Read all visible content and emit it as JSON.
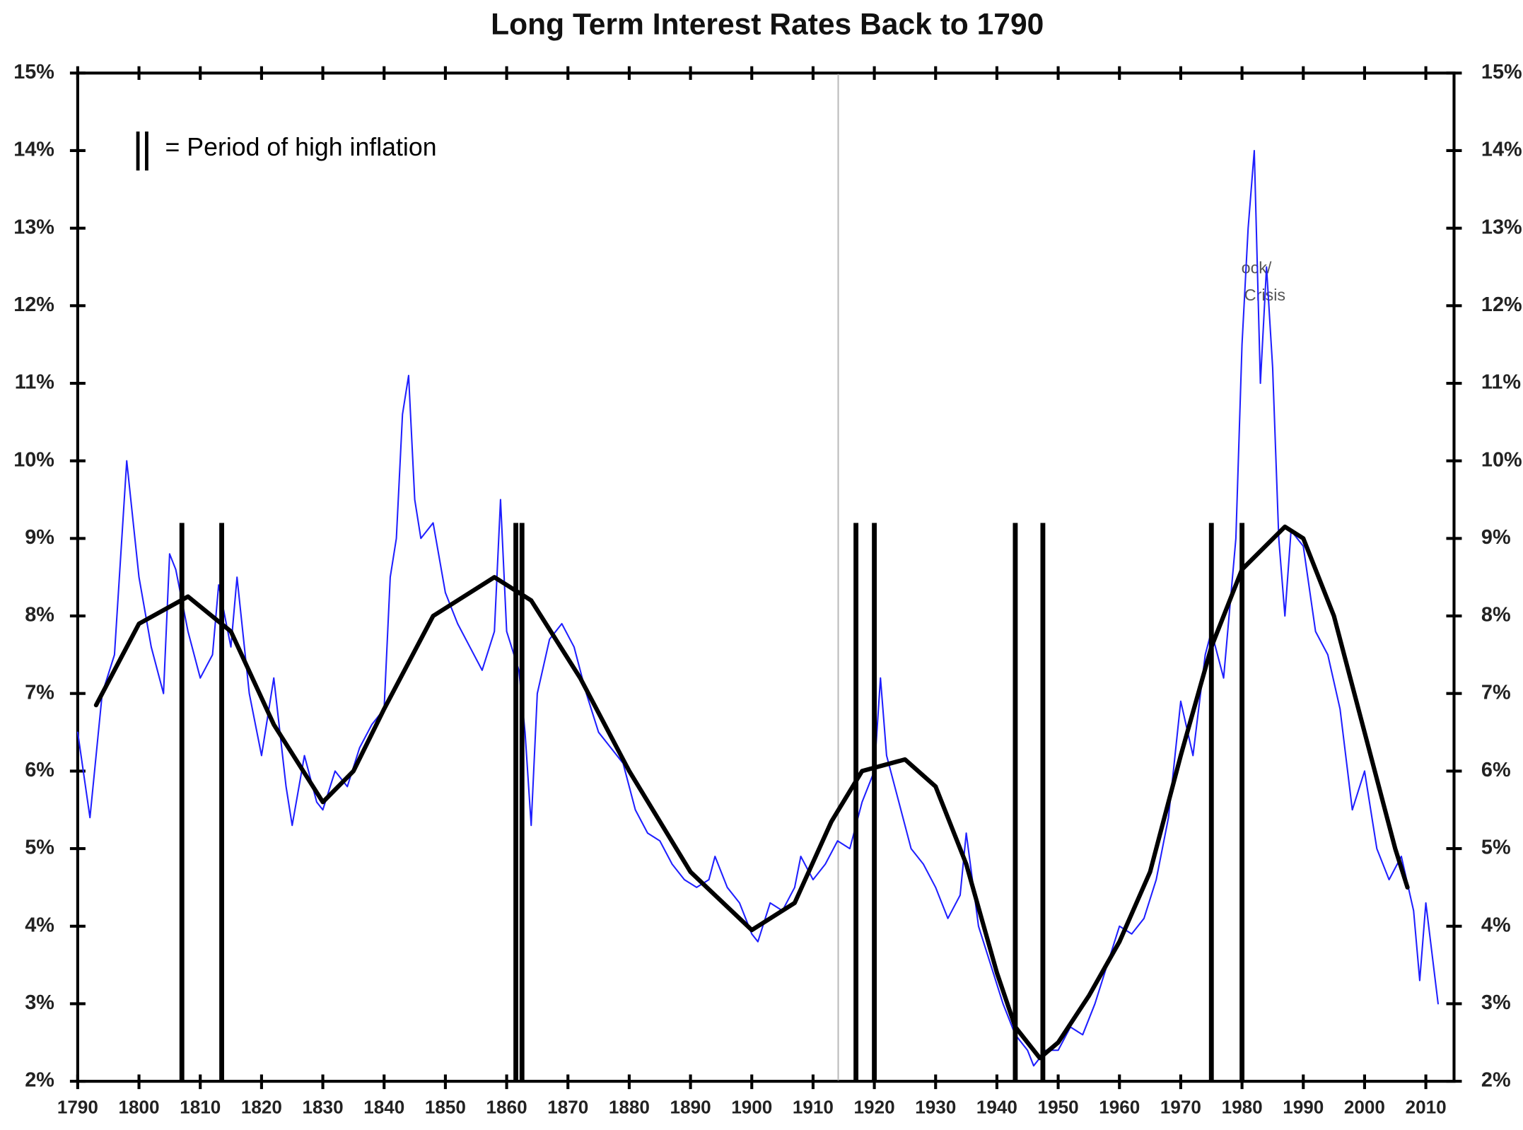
{
  "chart_data": {
    "type": "line",
    "title": "Long Term Interest Rates Back to 1790",
    "legend_text": "= Period of high inflation",
    "annotations": [
      "ock/",
      "Crisis"
    ],
    "xlim": [
      1790,
      2014.6
    ],
    "xticks": [
      1790,
      1800,
      1810,
      1820,
      1830,
      1840,
      1850,
      1860,
      1870,
      1880,
      1890,
      1900,
      1910,
      1920,
      1930,
      1940,
      1950,
      1960,
      1970,
      1980,
      1990,
      2000,
      2010
    ],
    "ylim": [
      2,
      15
    ],
    "yticks": [
      {
        "value": 2,
        "label": "2%"
      },
      {
        "value": 3,
        "label": "3%"
      },
      {
        "value": 4,
        "label": "4%"
      },
      {
        "value": 5,
        "label": "5%"
      },
      {
        "value": 6,
        "label": "6%"
      },
      {
        "value": 7,
        "label": "7%"
      },
      {
        "value": 8,
        "label": "8%"
      },
      {
        "value": 9,
        "label": "9%"
      },
      {
        "value": 10,
        "label": "10%"
      },
      {
        "value": 11,
        "label": "11%"
      },
      {
        "value": 12,
        "label": "12%"
      },
      {
        "value": 13,
        "label": "13%"
      },
      {
        "value": 14,
        "label": "14%"
      },
      {
        "value": 15,
        "label": "15%"
      }
    ],
    "series": [
      {
        "color": "#1f1fff",
        "width": 1.5,
        "x": [
          1790,
          1792,
          1794,
          1796,
          1798,
          1800,
          1802,
          1804,
          1805,
          1806,
          1808,
          1810,
          1812,
          1813,
          1815,
          1816,
          1818,
          1820,
          1822,
          1824,
          1825,
          1827,
          1829,
          1830,
          1832,
          1834,
          1836,
          1838,
          1840,
          1841,
          1842,
          1843,
          1844,
          1845,
          1846,
          1848,
          1850,
          1852,
          1854,
          1856,
          1858,
          1859,
          1860,
          1862,
          1863,
          1864,
          1865,
          1867,
          1869,
          1871,
          1873,
          1875,
          1877,
          1879,
          1881,
          1883,
          1885,
          1887,
          1889,
          1891,
          1893,
          1894,
          1896,
          1898,
          1900,
          1901,
          1903,
          1905,
          1907,
          1908,
          1910,
          1912,
          1914,
          1916,
          1918,
          1920,
          1921,
          1922,
          1924,
          1926,
          1928,
          1930,
          1932,
          1934,
          1935,
          1937,
          1939,
          1941,
          1943,
          1945,
          1946,
          1948,
          1950,
          1952,
          1954,
          1956,
          1958,
          1960,
          1962,
          1964,
          1966,
          1968,
          1970,
          1972,
          1974,
          1975,
          1977,
          1979,
          1980,
          1981,
          1982,
          1983,
          1984,
          1985,
          1986,
          1987,
          1988,
          1990,
          1992,
          1994,
          1996,
          1998,
          2000,
          2002,
          2004,
          2006,
          2008,
          2009,
          2010,
          2012
        ],
        "values": [
          6.5,
          5.4,
          7.0,
          7.5,
          10.0,
          8.5,
          7.6,
          7.0,
          8.8,
          8.6,
          7.8,
          7.2,
          7.5,
          8.4,
          7.6,
          8.5,
          7.0,
          6.2,
          7.2,
          5.8,
          5.3,
          6.2,
          5.6,
          5.5,
          6.0,
          5.8,
          6.3,
          6.6,
          6.8,
          8.5,
          9.0,
          10.6,
          11.1,
          9.5,
          9.0,
          9.2,
          8.3,
          7.9,
          7.6,
          7.3,
          7.8,
          9.5,
          7.8,
          7.3,
          6.5,
          5.3,
          7.0,
          7.7,
          7.9,
          7.6,
          7.0,
          6.5,
          6.3,
          6.1,
          5.5,
          5.2,
          5.1,
          4.8,
          4.6,
          4.5,
          4.6,
          4.9,
          4.5,
          4.3,
          3.9,
          3.8,
          4.3,
          4.2,
          4.5,
          4.9,
          4.6,
          4.8,
          5.1,
          5.0,
          5.6,
          6.0,
          7.2,
          6.2,
          5.6,
          5.0,
          4.8,
          4.5,
          4.1,
          4.4,
          5.2,
          4.0,
          3.5,
          3.0,
          2.6,
          2.4,
          2.2,
          2.4,
          2.4,
          2.7,
          2.6,
          3.0,
          3.5,
          4.0,
          3.9,
          4.1,
          4.6,
          5.4,
          6.9,
          6.2,
          7.5,
          7.8,
          7.2,
          9.0,
          11.5,
          13.0,
          14.0,
          11.0,
          12.5,
          11.2,
          9.0,
          8.0,
          9.1,
          8.9,
          7.8,
          7.5,
          6.8,
          5.5,
          6.0,
          5.0,
          4.6,
          4.9,
          4.2,
          3.3,
          4.3,
          3.0
        ]
      },
      {
        "color": "#000000",
        "width": 4.5,
        "x": [
          1793,
          1800,
          1808,
          1815,
          1822,
          1830,
          1835,
          1840,
          1848,
          1858,
          1864,
          1872,
          1880,
          1890,
          1900,
          1907,
          1913,
          1918,
          1925,
          1930,
          1935,
          1940,
          1943,
          1947,
          1950,
          1955,
          1960,
          1965,
          1970,
          1975,
          1980,
          1987,
          1990,
          1995,
          2000,
          2005,
          2007
        ],
        "values": [
          6.85,
          7.9,
          8.25,
          7.8,
          6.6,
          5.6,
          6.0,
          6.8,
          8.0,
          8.5,
          8.2,
          7.2,
          6.0,
          4.7,
          3.95,
          4.3,
          5.35,
          6.0,
          6.15,
          5.8,
          4.8,
          3.4,
          2.7,
          2.3,
          2.5,
          3.1,
          3.8,
          4.7,
          6.2,
          7.6,
          8.6,
          9.15,
          9.0,
          8.0,
          6.5,
          5.0,
          4.5
        ]
      }
    ],
    "inflation_lines": {
      "x": [
        1807,
        1813.5,
        1861.5,
        1862.5,
        1917,
        1920,
        1943,
        1947.5,
        1975,
        1980
      ],
      "top": 9.2,
      "color": "#000000"
    }
  }
}
